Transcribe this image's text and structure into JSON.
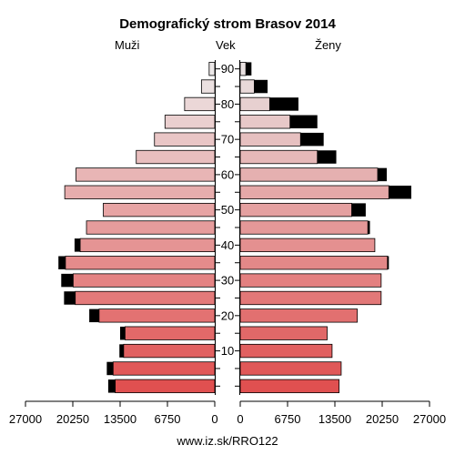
{
  "title": "Demografický strom Brasov 2014",
  "header": {
    "left": "Muži",
    "center": "Vek",
    "right": "Ženy"
  },
  "footer": "www.iz.sk/RRO122",
  "colors": {
    "overflow": "#000000",
    "stroke": "#000000"
  },
  "chart_data": {
    "type": "bar",
    "title": "Demografický strom Brasov 2014",
    "xlabel": "",
    "ylabel": "Vek",
    "xlim": [
      0,
      27000
    ],
    "x_ticks": [
      "27000",
      "20250",
      "13500",
      "6750",
      "0",
      "0",
      "6750",
      "13500",
      "20250",
      "27000"
    ],
    "y_ticks": [
      "10",
      "20",
      "30",
      "40",
      "50",
      "60",
      "70",
      "80",
      "90"
    ],
    "age_groups": [
      "0-4",
      "5-9",
      "10-14",
      "15-19",
      "20-24",
      "25-29",
      "30-34",
      "35-39",
      "40-44",
      "45-49",
      "50-54",
      "55-59",
      "60-64",
      "65-69",
      "70-74",
      "75-79",
      "80-84",
      "85-89",
      "90+"
    ],
    "series": [
      {
        "name": "Muži",
        "values": [
          14200,
          14500,
          13000,
          12800,
          16500,
          19900,
          20200,
          21300,
          19200,
          18300,
          15900,
          21400,
          19800,
          11200,
          8600,
          7100,
          4300,
          1900,
          800
        ],
        "excess": [
          1000,
          900,
          600,
          700,
          1400,
          1600,
          1700,
          1000,
          800,
          0,
          0,
          0,
          0,
          0,
          0,
          0,
          0,
          0,
          0
        ]
      },
      {
        "name": "Ženy",
        "values": [
          14100,
          14400,
          13100,
          12400,
          16700,
          20100,
          20100,
          21000,
          19200,
          18200,
          15900,
          21200,
          19600,
          11000,
          8600,
          7100,
          4200,
          2000,
          800
        ],
        "excess": [
          0,
          0,
          0,
          0,
          0,
          0,
          0,
          200,
          0,
          300,
          2000,
          3200,
          1300,
          2700,
          3300,
          3900,
          4100,
          1900,
          800
        ]
      }
    ]
  }
}
